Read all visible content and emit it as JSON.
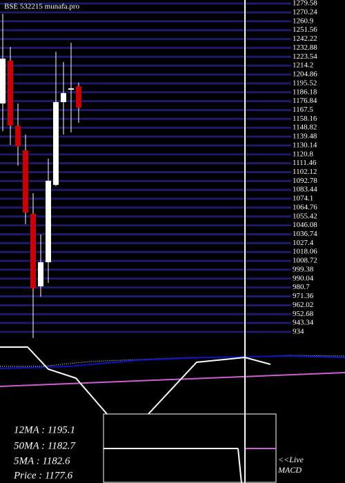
{
  "chart_data": {
    "type": "candlestick",
    "title": "BSE 532215 munafa.pro",
    "open": [
      1174.4,
      1219.4,
      1151.1,
      1125.0,
      1058.2,
      981.9,
      1007.3,
      1088.7,
      1175.8,
      1188.9,
      1192.5
    ],
    "high": [
      1268.8,
      1233.9,
      1174.4,
      1141.7,
      1080.0,
      1036.4,
      1116.3,
      1228.8,
      1218.0,
      1238.3,
      1196.2
    ],
    "low": [
      1145.3,
      1130.8,
      1109.0,
      1047.3,
      927.5,
      971.0,
      985.5,
      1087.2,
      1141.7,
      1143.9,
      1154.0
    ],
    "close": [
      1221.6,
      1151.1,
      1129.3,
      1059.6,
      979.8,
      1007.3,
      1093.0,
      1175.8,
      1185.3,
      1190.4,
      1170.0
    ],
    "up_color": "#ffffff",
    "down_color": "#cc0000",
    "grid_color": "#1c1c6a",
    "ylim": [
      923.8,
      1283.3
    ],
    "yticks": [
      1279.58,
      1270.24,
      1260.9,
      1251.56,
      1242.22,
      1232.88,
      1223.54,
      1214.2,
      1204.86,
      1195.52,
      1186.18,
      1176.84,
      1167.5,
      1158.16,
      1148.82,
      1139.48,
      1130.14,
      1120.8,
      1111.46,
      1102.12,
      1092.78,
      1083.44,
      1074.1,
      1064.76,
      1055.42,
      1046.08,
      1036.74,
      1027.4,
      1018.06,
      1008.72,
      999.38,
      990.04,
      980.7,
      971.36,
      962.02,
      952.68,
      943.34,
      934
    ],
    "grid": true,
    "info": [
      "12MA : 1195.1",
      "50MA : 1182.7",
      "5MA : 1182.6",
      "Price  : 1177.6"
    ],
    "live": "<<Live",
    "panel": "MACD"
  }
}
